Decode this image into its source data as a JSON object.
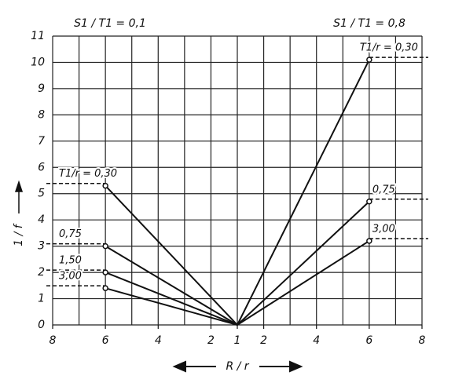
{
  "chart_data": {
    "type": "line",
    "xlabel": "R / r",
    "ylabel": "1 / f",
    "annotations": [
      "S1 / T1 = 0,1",
      "S1 / T1 = 0,8"
    ],
    "xlim": [
      -7,
      7
    ],
    "xticks": [
      {
        "value": -7,
        "label": "8"
      },
      {
        "value": -5,
        "label": "6"
      },
      {
        "value": -3,
        "label": "4"
      },
      {
        "value": -1,
        "label": "2"
      },
      {
        "value": 0,
        "label": "1"
      },
      {
        "value": 1,
        "label": "2"
      },
      {
        "value": 3,
        "label": "4"
      },
      {
        "value": 5,
        "label": "6"
      },
      {
        "value": 7,
        "label": "8"
      }
    ],
    "xgrid": [
      -7,
      -6,
      -5,
      -4,
      -3,
      -2,
      -1,
      0,
      1,
      2,
      3,
      4,
      5,
      6,
      7
    ],
    "ylim": [
      0,
      11
    ],
    "yticks": [
      0,
      1,
      2,
      3,
      4,
      5,
      6,
      7,
      8,
      9,
      10,
      11
    ],
    "grid": true,
    "series": [
      {
        "name": "T1/r = 0,30",
        "color": "#111111",
        "x": [
          0,
          -5
        ],
        "values": [
          0,
          5.3
        ]
      },
      {
        "name": "0,75",
        "color": "#111111",
        "x": [
          0,
          -5
        ],
        "values": [
          0,
          3.0
        ]
      },
      {
        "name": "1,50",
        "color": "#111111",
        "x": [
          0,
          -5
        ],
        "values": [
          0,
          2.0
        ]
      },
      {
        "name": "3,00",
        "color": "#111111",
        "x": [
          0,
          -5
        ],
        "values": [
          0,
          1.4
        ]
      },
      {
        "name": "T1/r = 0,30",
        "color": "#111111",
        "x": [
          0,
          5
        ],
        "values": [
          0,
          10.1
        ]
      },
      {
        "name": "0,75",
        "color": "#111111",
        "x": [
          0,
          5
        ],
        "values": [
          0,
          4.7
        ]
      },
      {
        "name": "3,00",
        "color": "#111111",
        "x": [
          0,
          5
        ],
        "values": [
          0,
          3.2
        ]
      }
    ]
  }
}
